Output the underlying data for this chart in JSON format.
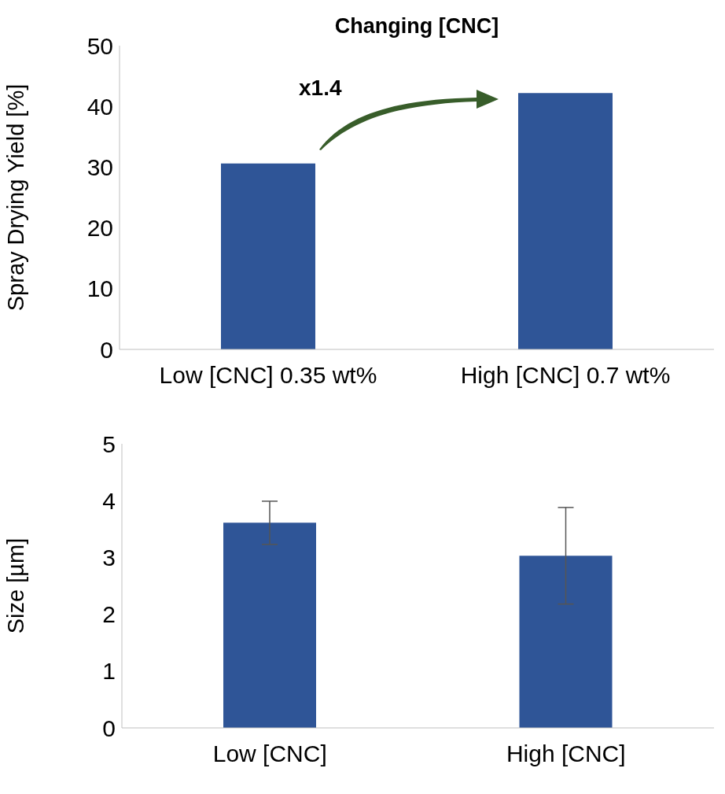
{
  "chart_data": [
    {
      "type": "bar",
      "title": "Changing [CNC]",
      "ylabel": "Spray Drying Yield  [%]",
      "categories": [
        "Low [CNC] 0.35 wt%",
        "High [CNC] 0.7 wt%"
      ],
      "values": [
        30.6,
        42.2
      ],
      "color": "#2f5597",
      "ylim": [
        0,
        50
      ],
      "yticks": [
        0,
        10,
        20,
        30,
        40,
        50
      ],
      "annotations": [
        "x1.4"
      ]
    },
    {
      "type": "bar",
      "ylabel": "Size [µm]",
      "categories": [
        "Low [CNC]",
        "High [CNC]"
      ],
      "values": [
        3.61,
        3.03
      ],
      "errors": [
        0.38,
        0.85
      ],
      "color": "#2f5597",
      "ylim": [
        0,
        5
      ],
      "yticks": [
        0,
        1,
        2,
        3,
        4,
        5
      ]
    }
  ]
}
